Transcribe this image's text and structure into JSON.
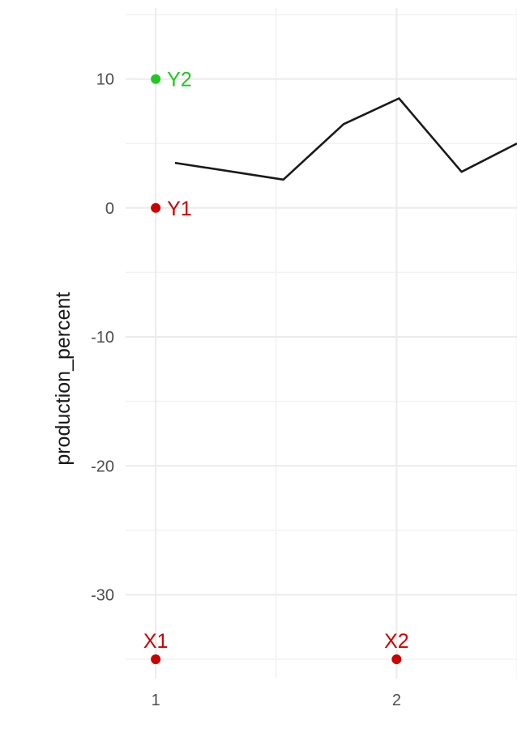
{
  "chart_data": {
    "type": "line",
    "xlabel": "",
    "ylabel": "production_percent",
    "ylim": [
      -36.5,
      15.5
    ],
    "xlim": [
      0.875,
      2.5
    ],
    "x_ticks": [
      1,
      2
    ],
    "x_tick_labels": [
      "1",
      "2"
    ],
    "y_ticks": [
      -30,
      -20,
      -10,
      0,
      10
    ],
    "y_tick_labels": [
      "-30",
      "-20",
      "-10",
      "0",
      "10"
    ],
    "grid": true,
    "legend": "none",
    "series": [
      {
        "x": [
          1.08,
          1.53,
          1.78,
          2.01,
          2.27,
          2.5
        ],
        "y": [
          3.5,
          2.2,
          6.5,
          8.5,
          2.8,
          5.0
        ],
        "color": "#1a1a1a"
      }
    ],
    "markers": [
      {
        "label": "Y2",
        "x": 1,
        "y": 10,
        "color": "#22c722",
        "label_position": "right"
      },
      {
        "label": "Y1",
        "x": 1,
        "y": 0,
        "color": "#cc0000",
        "label_position": "right"
      },
      {
        "label": "X1",
        "x": 1,
        "y": -35,
        "color": "#cc0000",
        "label_position": "above"
      },
      {
        "label": "X2",
        "x": 2,
        "y": -35,
        "color": "#cc0000",
        "label_position": "above"
      }
    ]
  }
}
